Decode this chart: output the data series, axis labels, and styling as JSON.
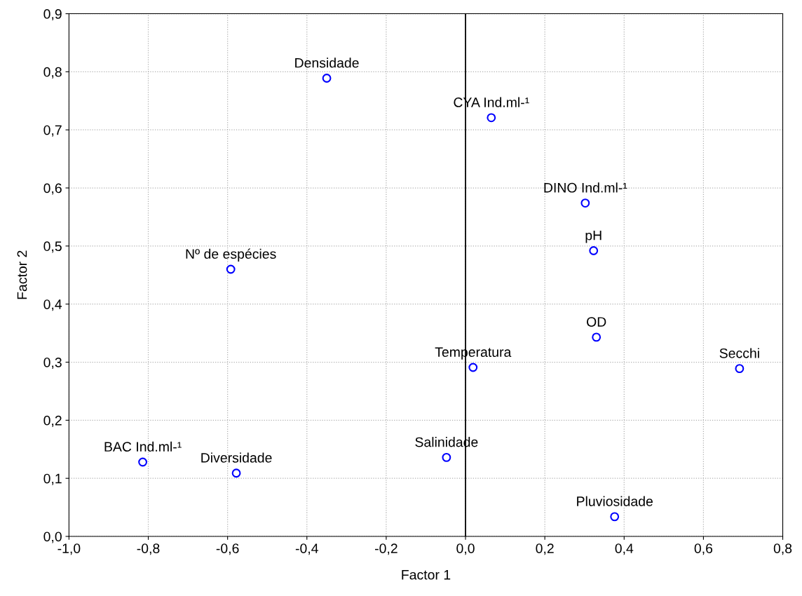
{
  "chart_data": {
    "type": "scatter",
    "xlabel": "Factor 1",
    "ylabel": "Factor 2",
    "x": [
      -0.35,
      0.065,
      0.302,
      0.323,
      -0.592,
      0.33,
      0.019,
      0.691,
      -0.048,
      -0.814,
      -0.578,
      0.376
    ],
    "series": [
      {
        "color": "#0000ff",
        "values": [
          0.789,
          0.721,
          0.574,
          0.492,
          0.46,
          0.343,
          0.291,
          0.289,
          0.136,
          0.128,
          0.109,
          0.034
        ]
      }
    ],
    "marker": "circle",
    "grid": true,
    "xlim": [
      -1.0,
      0.8
    ],
    "ylim": [
      0.0,
      0.9
    ],
    "xticks": [
      {
        "value": -1.0,
        "label": "-1,0"
      },
      {
        "value": -0.8,
        "label": "-0,8"
      },
      {
        "value": -0.6,
        "label": "-0,6"
      },
      {
        "value": -0.4,
        "label": "-0,4"
      },
      {
        "value": -0.2,
        "label": "-0,2"
      },
      {
        "value": 0.0,
        "label": "0,0"
      },
      {
        "value": 0.2,
        "label": "0,2"
      },
      {
        "value": 0.4,
        "label": "0,4"
      },
      {
        "value": 0.6,
        "label": "0,6"
      },
      {
        "value": 0.8,
        "label": "0,8"
      }
    ],
    "yticks": [
      {
        "value": 0.0,
        "label": "0,0"
      },
      {
        "value": 0.1,
        "label": "0,1"
      },
      {
        "value": 0.2,
        "label": "0,2"
      },
      {
        "value": 0.3,
        "label": "0,3"
      },
      {
        "value": 0.4,
        "label": "0,4"
      },
      {
        "value": 0.5,
        "label": "0,5"
      },
      {
        "value": 0.6,
        "label": "0,6"
      },
      {
        "value": 0.7,
        "label": "0,7"
      },
      {
        "value": 0.8,
        "label": "0,8"
      },
      {
        "value": 0.9,
        "label": "0,9"
      }
    ],
    "ref_lines": [
      {
        "axis": "x",
        "value": 0.0,
        "color": "#000000",
        "line_style": "solid"
      }
    ],
    "annotations": [
      {
        "text": "Densidade",
        "x": -0.35,
        "y": 0.789
      },
      {
        "text": "CYA Ind.ml-¹",
        "x": 0.065,
        "y": 0.721
      },
      {
        "text": "DINO Ind.ml-¹",
        "x": 0.302,
        "y": 0.574
      },
      {
        "text": "pH",
        "x": 0.323,
        "y": 0.492
      },
      {
        "text": "Nº de espécies",
        "x": -0.592,
        "y": 0.46
      },
      {
        "text": "OD",
        "x": 0.33,
        "y": 0.343
      },
      {
        "text": "Temperatura",
        "x": 0.019,
        "y": 0.291
      },
      {
        "text": "Secchi",
        "x": 0.691,
        "y": 0.289
      },
      {
        "text": "Salinidade",
        "x": -0.048,
        "y": 0.136
      },
      {
        "text": "BAC Ind.ml-¹",
        "x": -0.814,
        "y": 0.128
      },
      {
        "text": "Diversidade",
        "x": -0.578,
        "y": 0.109
      },
      {
        "text": "Pluviosidade",
        "x": 0.376,
        "y": 0.034
      }
    ]
  }
}
